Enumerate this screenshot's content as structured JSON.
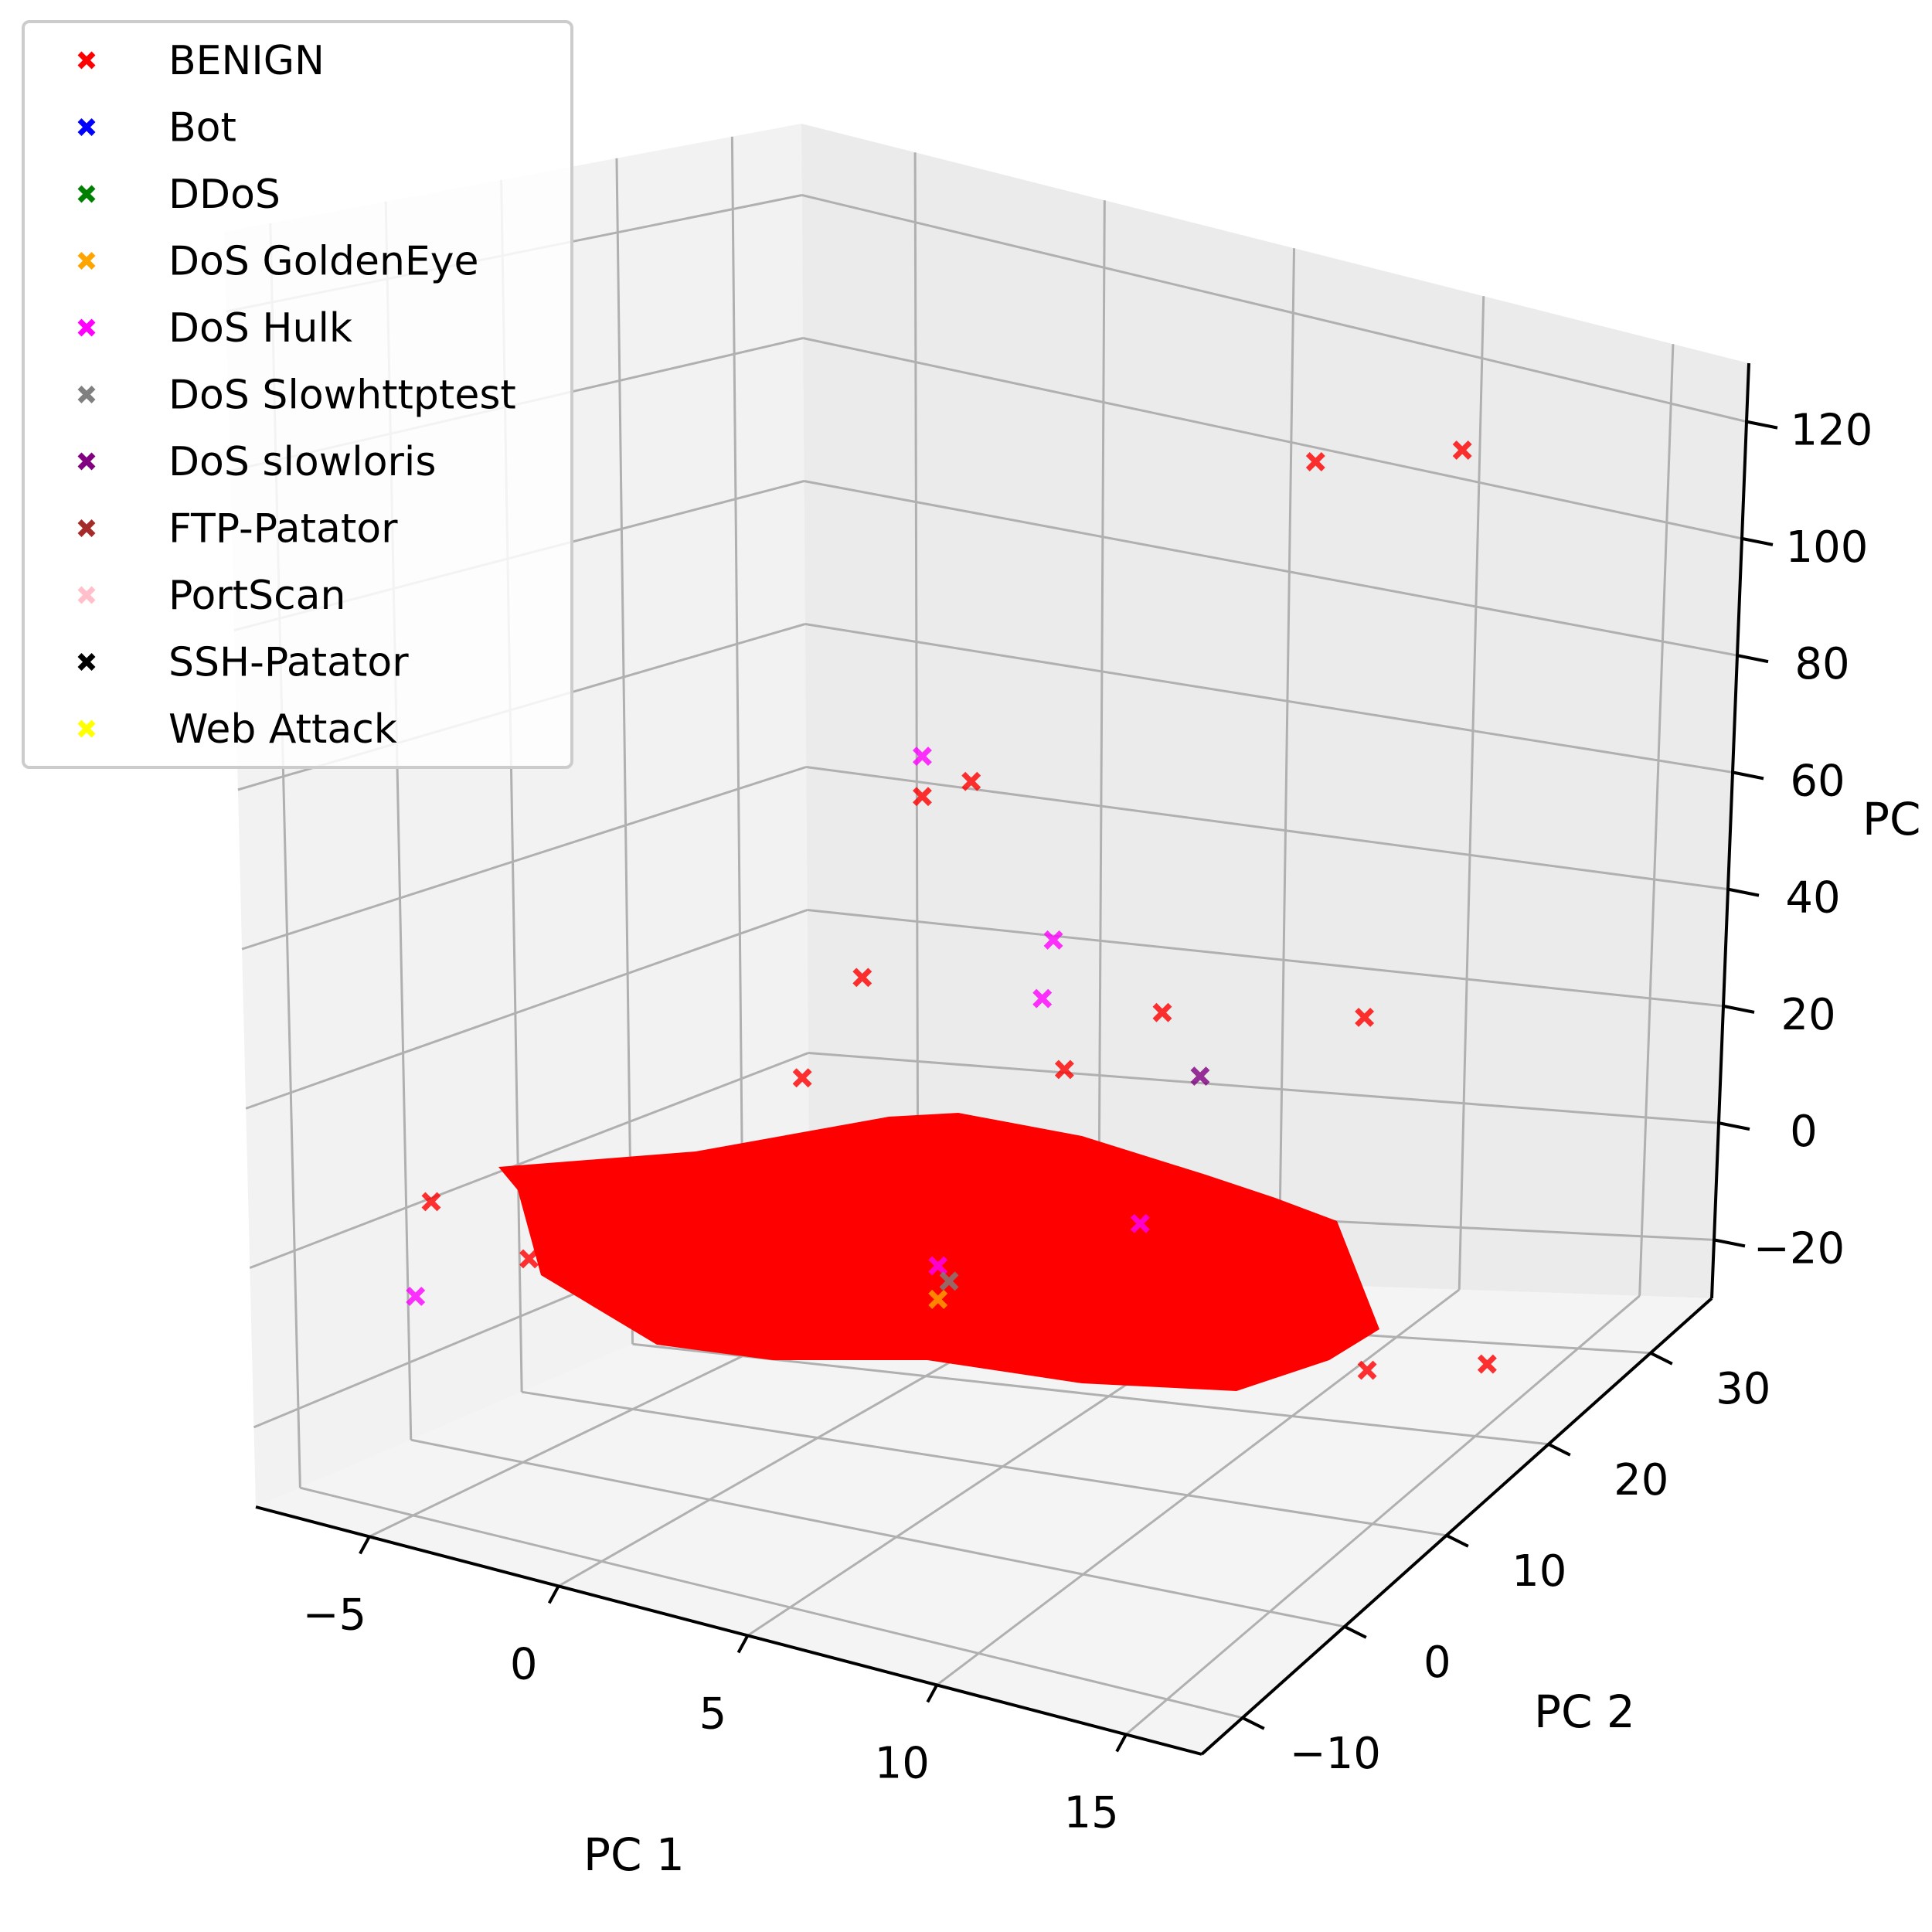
{
  "chart_data": {
    "type": "scatter",
    "projection": "3d",
    "title": "",
    "xlabel": "PC 1",
    "ylabel": "PC 2",
    "zlabel": "PC",
    "x_ticks": [
      "−5",
      "0",
      "5",
      "10",
      "15"
    ],
    "y_ticks": [
      "−10",
      "0",
      "10",
      "20",
      "30"
    ],
    "z_ticks": [
      "−20",
      "0",
      "20",
      "40",
      "60",
      "80",
      "100",
      "120"
    ],
    "xlim": [
      -8,
      17
    ],
    "ylim": [
      -14,
      36
    ],
    "zlim": [
      -30,
      130
    ],
    "grid": true,
    "legend_position": "top-left",
    "marker": "x",
    "series": [
      {
        "name": "BENIGN",
        "color": "#ff0000",
        "points": [
          [
            11,
            30,
            124
          ],
          [
            8,
            27,
            120
          ],
          [
            3,
            13,
            75
          ],
          [
            2,
            12,
            72
          ],
          [
            6,
            20,
            40
          ],
          [
            9,
            28,
            38
          ],
          [
            4,
            18,
            30
          ],
          [
            1,
            10,
            45
          ],
          [
            0,
            8,
            30
          ],
          [
            2,
            12,
            20
          ],
          [
            -6,
            -5,
            12
          ],
          [
            -4,
            -3,
            5
          ],
          [
            -2,
            -2,
            3
          ],
          [
            0,
            0,
            2
          ],
          [
            5,
            5,
            1
          ],
          [
            10,
            15,
            0
          ],
          [
            14,
            22,
            -2
          ],
          [
            12,
            18,
            -3
          ]
        ]
      },
      {
        "name": "Bot",
        "color": "#0000ff",
        "points": []
      },
      {
        "name": "DDoS",
        "color": "#008000",
        "points": []
      },
      {
        "name": "DoS GoldenEye",
        "color": "#ffa500",
        "points": [
          [
            3,
            10,
            0
          ]
        ]
      },
      {
        "name": "DoS Hulk",
        "color": "#ff00ff",
        "points": [
          [
            2,
            12,
            78
          ],
          [
            4,
            17,
            50
          ],
          [
            4,
            16,
            42
          ],
          [
            -7,
            -3,
            -5
          ],
          [
            6,
            18,
            10
          ],
          [
            3,
            10,
            5
          ]
        ]
      },
      {
        "name": "DoS Slowhttptest",
        "color": "#808080",
        "points": [
          [
            3,
            11,
            2
          ]
        ]
      },
      {
        "name": "DoS slowloris",
        "color": "#800080",
        "points": [
          [
            7,
            20,
            32
          ]
        ]
      },
      {
        "name": "FTP-Patator",
        "color": "#a52a2a",
        "points": []
      },
      {
        "name": "PortScan",
        "color": "#ffc0cb",
        "points": []
      },
      {
        "name": "SSH-Patator",
        "color": "#000000",
        "points": []
      },
      {
        "name": "Web Attack",
        "color": "#ffff00",
        "points": []
      }
    ]
  }
}
